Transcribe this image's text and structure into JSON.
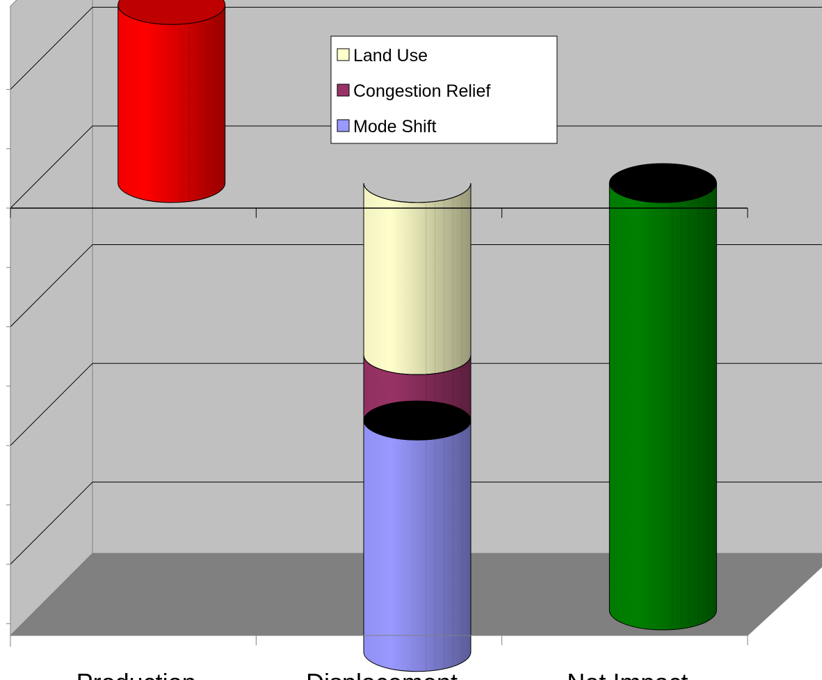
{
  "chart_data": {
    "type": "bar",
    "style": "3d-cylinder",
    "categories": [
      "Production",
      "Displacement",
      "Net Impact"
    ],
    "series": [
      {
        "name": "Land Use",
        "color": "#FFFFCC",
        "values": [
          null,
          -1.45,
          null
        ]
      },
      {
        "name": "Congestion Relief",
        "color": "#993366",
        "values": [
          null,
          -0.55,
          null
        ]
      },
      {
        "name": "Mode Shift",
        "color": "#9999FF",
        "values": [
          null,
          -1.95,
          null
        ]
      },
      {
        "name": "",
        "color": "#FF0000",
        "values": [
          1.5,
          null,
          null
        ]
      },
      {
        "name": "",
        "color": "#008000",
        "values": [
          null,
          null,
          -3.6
        ]
      }
    ],
    "ylim": [
      -3.6,
      1.7
    ],
    "y_gridlines": [
      1.0,
      -1.0,
      -2.0,
      -3.0
    ],
    "grid": true,
    "y_tick_labels_shown": false,
    "legend": {
      "position": "top-center",
      "entries": [
        "Land Use",
        "Congestion Relief",
        "Mode Shift"
      ]
    },
    "colors": {
      "wall": "#C0C0C0",
      "floor": "#808080",
      "cap": "#000000"
    }
  }
}
